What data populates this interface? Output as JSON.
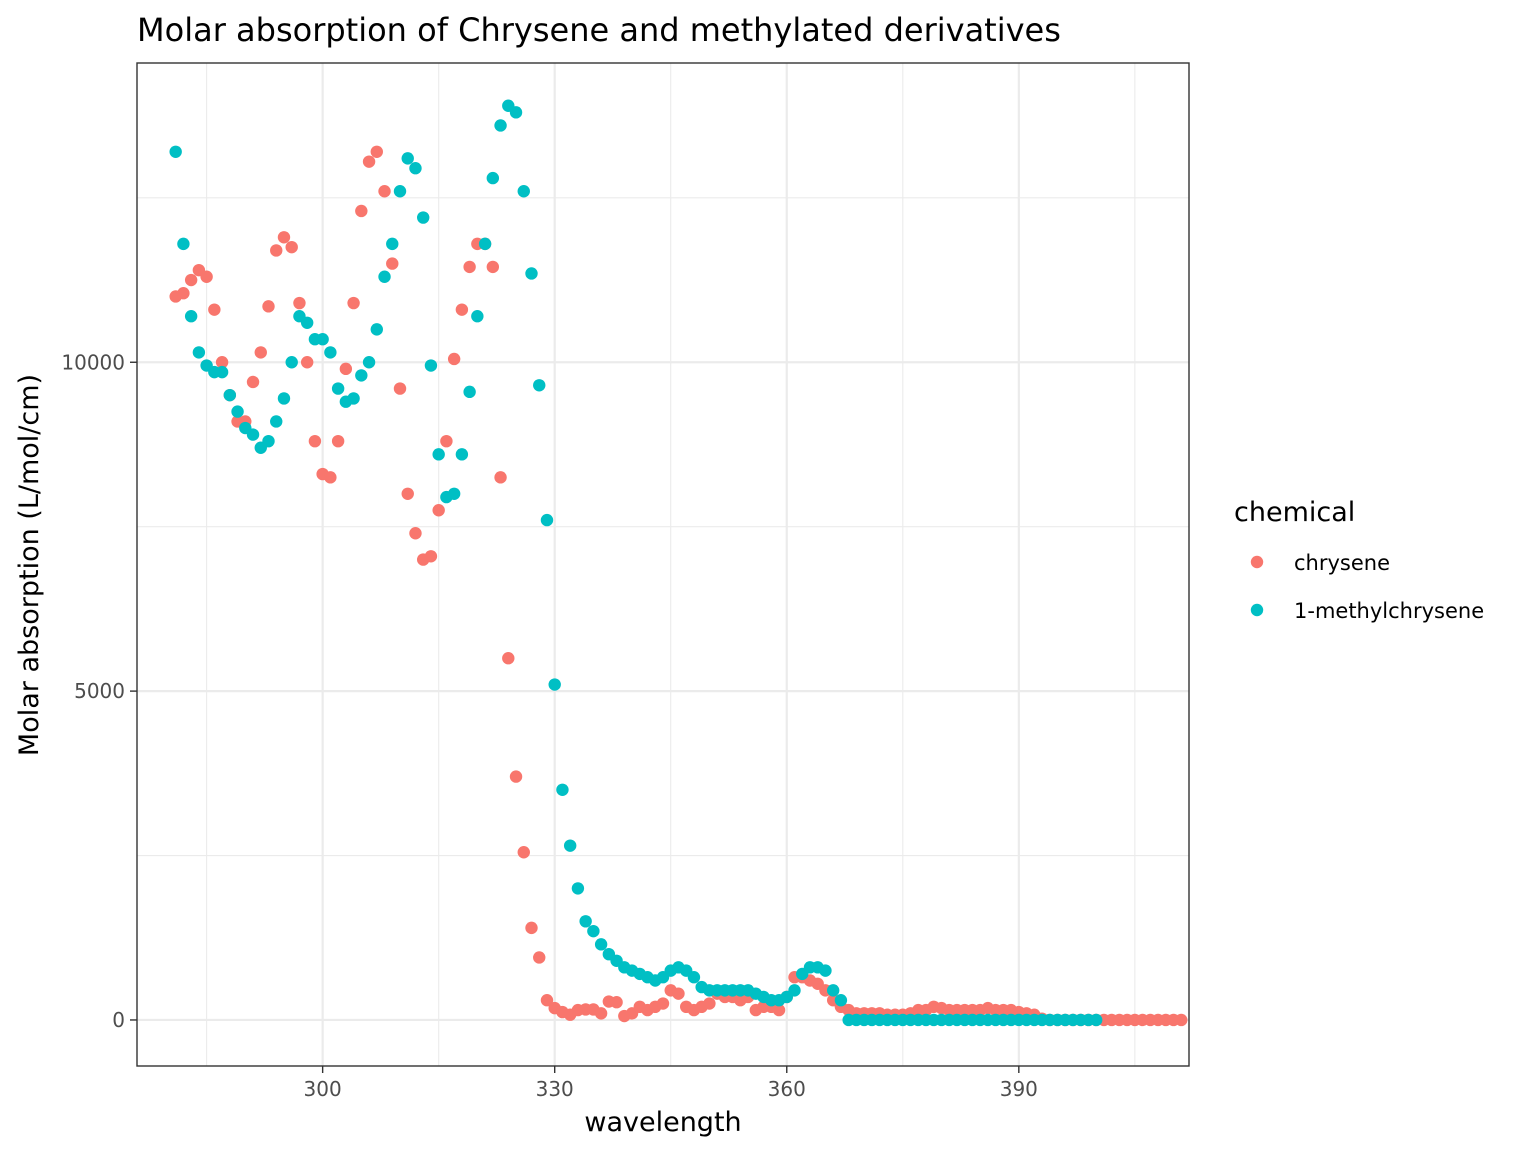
{
  "chart_data": {
    "type": "scatter",
    "title": "Molar absorption of Chrysene and methylated derivatives",
    "xlabel": "wavelength",
    "ylabel": "Molar absorption (L/mol/cm)",
    "xlim": [
      276,
      412
    ],
    "ylim": [
      -700,
      14550
    ],
    "x_ticks": [
      300,
      330,
      360,
      390
    ],
    "y_ticks": [
      0,
      5000,
      10000
    ],
    "x_tick_labels": [
      "300",
      "330",
      "360",
      "390"
    ],
    "y_tick_labels": [
      "0",
      "5000",
      "10000"
    ],
    "grid": true,
    "legend": {
      "title": "chemical",
      "position": "right"
    },
    "series": [
      {
        "name": "chrysene",
        "color": "#F8766D",
        "x": [
          281,
          282,
          283,
          284,
          285,
          286,
          287,
          288,
          289,
          290,
          291,
          292,
          293,
          294,
          295,
          296,
          297,
          298,
          299,
          300,
          301,
          302,
          303,
          304,
          305,
          306,
          307,
          308,
          309,
          310,
          311,
          312,
          313,
          314,
          315,
          316,
          317,
          318,
          319,
          320,
          321,
          322,
          323,
          324,
          325,
          326,
          327,
          328,
          329,
          330,
          331,
          332,
          333,
          334,
          335,
          336,
          337,
          338,
          339,
          340,
          341,
          342,
          343,
          344,
          345,
          346,
          347,
          348,
          349,
          350,
          351,
          352,
          353,
          354,
          355,
          356,
          357,
          358,
          359,
          360,
          361,
          362,
          363,
          364,
          365,
          366,
          367,
          368,
          369,
          370,
          371,
          372,
          373,
          374,
          375,
          376,
          377,
          378,
          379,
          380,
          381,
          382,
          383,
          384,
          385,
          386,
          387,
          388,
          389,
          390,
          391,
          392,
          393,
          394,
          395,
          396,
          397,
          398,
          399,
          400,
          401,
          402,
          403,
          404,
          405,
          406,
          407,
          408,
          409,
          410,
          411
        ],
        "values": [
          11000,
          11050,
          11250,
          11400,
          11300,
          10800,
          10000,
          9500,
          9100,
          9100,
          9700,
          10150,
          10850,
          11700,
          11900,
          11750,
          10900,
          10000,
          8800,
          8300,
          8250,
          8800,
          9900,
          10900,
          12300,
          13050,
          13200,
          12600,
          11500,
          9600,
          8000,
          7400,
          7000,
          7050,
          7750,
          8800,
          10050,
          10800,
          11450,
          11800,
          11800,
          11450,
          8250,
          5500,
          3700,
          2550,
          1400,
          950,
          300,
          180,
          120,
          80,
          150,
          160,
          160,
          100,
          280,
          270,
          60,
          100,
          200,
          150,
          200,
          250,
          450,
          400,
          200,
          150,
          200,
          250,
          400,
          350,
          350,
          300,
          350,
          150,
          200,
          200,
          150,
          350,
          650,
          650,
          600,
          550,
          450,
          300,
          200,
          150,
          100,
          100,
          100,
          100,
          80,
          80,
          80,
          100,
          150,
          150,
          200,
          180,
          150,
          150,
          150,
          150,
          150,
          180,
          150,
          150,
          150,
          120,
          100,
          80,
          20,
          0,
          0,
          0,
          0,
          0,
          0,
          0,
          0,
          0,
          0,
          0,
          0,
          0,
          0,
          0,
          0,
          0,
          0
        ]
      },
      {
        "name": "1-methylchrysene",
        "color": "#00BFC4",
        "x": [
          281,
          282,
          283,
          284,
          285,
          286,
          287,
          288,
          289,
          290,
          291,
          292,
          293,
          294,
          295,
          296,
          297,
          298,
          299,
          300,
          301,
          302,
          303,
          304,
          305,
          306,
          307,
          308,
          309,
          310,
          311,
          312,
          313,
          314,
          315,
          316,
          317,
          318,
          319,
          320,
          321,
          322,
          323,
          324,
          325,
          326,
          327,
          328,
          329,
          330,
          331,
          332,
          333,
          334,
          335,
          336,
          337,
          338,
          339,
          340,
          341,
          342,
          343,
          344,
          345,
          346,
          347,
          348,
          349,
          350,
          351,
          352,
          353,
          354,
          355,
          356,
          357,
          358,
          359,
          360,
          361,
          362,
          363,
          364,
          365,
          366,
          367,
          368,
          369,
          370,
          371,
          372,
          373,
          374,
          375,
          376,
          377,
          378,
          379,
          380,
          381,
          382,
          383,
          384,
          385,
          386,
          387,
          388,
          389,
          390,
          391,
          392,
          393,
          394,
          395,
          396,
          397,
          398,
          399,
          400
        ],
        "values": [
          13200,
          11800,
          10700,
          10150,
          9950,
          9850,
          9850,
          9500,
          9250,
          9000,
          8900,
          8700,
          8800,
          9100,
          9450,
          10000,
          10700,
          10600,
          10350,
          10350,
          10150,
          9600,
          9400,
          9450,
          9800,
          10000,
          10500,
          11300,
          11800,
          12600,
          13100,
          12950,
          12200,
          9950,
          8600,
          7950,
          8000,
          8600,
          9550,
          10700,
          11800,
          12800,
          13600,
          13900,
          13800,
          12600,
          11350,
          9650,
          7600,
          5100,
          3500,
          2650,
          2000,
          1500,
          1350,
          1150,
          1000,
          900,
          800,
          750,
          700,
          650,
          600,
          650,
          750,
          800,
          750,
          650,
          500,
          450,
          450,
          450,
          450,
          450,
          450,
          400,
          350,
          300,
          300,
          350,
          450,
          700,
          800,
          800,
          750,
          450,
          300,
          0,
          0,
          0,
          0,
          0,
          0,
          0,
          0,
          0,
          0,
          0,
          0,
          0,
          0,
          0,
          0,
          0,
          0,
          0,
          0,
          0,
          0,
          0,
          0,
          0,
          0,
          0,
          0,
          0,
          0,
          0,
          0,
          0
        ]
      }
    ]
  }
}
